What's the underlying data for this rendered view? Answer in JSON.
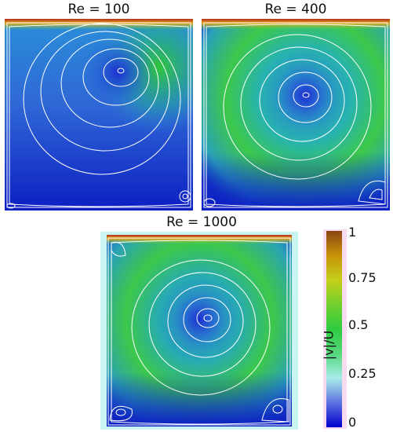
{
  "panels": [
    {
      "title": "Re = 100"
    },
    {
      "title": "Re = 400"
    },
    {
      "title": "Re = 1000"
    }
  ],
  "colorbar": {
    "title": "|v|/U",
    "ticks": [
      "1",
      "0.75",
      "0.5",
      "0.25",
      "0"
    ],
    "colors": [
      "#8B4513",
      "#d2a30a",
      "#9acd32",
      "#2ecc40",
      "#9be8e8",
      "#0000cc"
    ]
  }
}
